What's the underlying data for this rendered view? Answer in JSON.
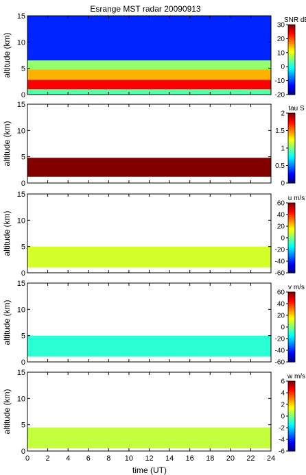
{
  "figure": {
    "title": "Esrange MST radar 20090913",
    "xlabel": "time (UT)"
  },
  "chart_data": [
    {
      "type": "heatmap",
      "ylabel": "altitude (km)",
      "colorbar_label": "SNR dB",
      "clim": [
        -20,
        30
      ],
      "colorbar_ticks": [
        30,
        20,
        10,
        0,
        -10,
        -20
      ],
      "xlim": [
        0,
        24
      ],
      "ylim": [
        0,
        15
      ],
      "x_ticks": [
        0,
        2,
        4,
        6,
        8,
        10,
        12,
        14,
        16,
        18,
        20,
        22,
        24
      ],
      "y_ticks": [
        0,
        5,
        10,
        15
      ],
      "layers": [
        {
          "altitude_km": [
            0,
            1.0
          ],
          "value": 3
        },
        {
          "altitude_km": [
            1.0,
            2.8
          ],
          "value": 24
        },
        {
          "altitude_km": [
            2.8,
            4.8
          ],
          "value": 15
        },
        {
          "altitude_km": [
            4.8,
            6.5
          ],
          "value": 6
        },
        {
          "altitude_km": [
            6.5,
            15
          ],
          "value": -12
        }
      ]
    },
    {
      "type": "heatmap",
      "ylabel": "altitude (km)",
      "colorbar_label": "tau S",
      "clim": [
        0,
        2
      ],
      "colorbar_ticks": [
        2,
        1.5,
        1,
        0.5,
        0
      ],
      "xlim": [
        0,
        24
      ],
      "ylim": [
        0,
        15
      ],
      "y_ticks": [
        0,
        5,
        10,
        15
      ],
      "layers": [
        {
          "altitude_km": [
            1.2,
            4.8
          ],
          "value": 2.0
        }
      ]
    },
    {
      "type": "heatmap",
      "ylabel": "altitude (km)",
      "colorbar_label": "u m/s",
      "clim": [
        -60,
        60
      ],
      "colorbar_ticks": [
        60,
        40,
        20,
        0,
        -20,
        -40,
        -60
      ],
      "xlim": [
        0,
        24
      ],
      "ylim": [
        0,
        15
      ],
      "y_ticks": [
        0,
        5,
        10,
        15
      ],
      "layers": [
        {
          "altitude_km": [
            1.0,
            5.0
          ],
          "value": 10
        }
      ]
    },
    {
      "type": "heatmap",
      "ylabel": "altitude (km)",
      "colorbar_label": "v m/s",
      "clim": [
        -60,
        60
      ],
      "colorbar_ticks": [
        60,
        40,
        20,
        0,
        -20,
        -40,
        -60
      ],
      "xlim": [
        0,
        24
      ],
      "ylim": [
        0,
        15
      ],
      "y_ticks": [
        0,
        5,
        10,
        15
      ],
      "layers": [
        {
          "altitude_km": [
            1.0,
            5.0
          ],
          "value": -10
        }
      ]
    },
    {
      "type": "heatmap",
      "ylabel": "altitude (km)",
      "colorbar_label": "w m/s",
      "clim": [
        -6,
        6
      ],
      "colorbar_ticks": [
        6,
        4,
        2,
        0,
        -2,
        -4,
        -6
      ],
      "xlim": [
        0,
        24
      ],
      "ylim": [
        0,
        15
      ],
      "y_ticks": [
        0,
        5,
        10,
        15
      ],
      "layers": [
        {
          "altitude_km": [
            0.5,
            4.5
          ],
          "value": 0.8
        }
      ]
    }
  ]
}
